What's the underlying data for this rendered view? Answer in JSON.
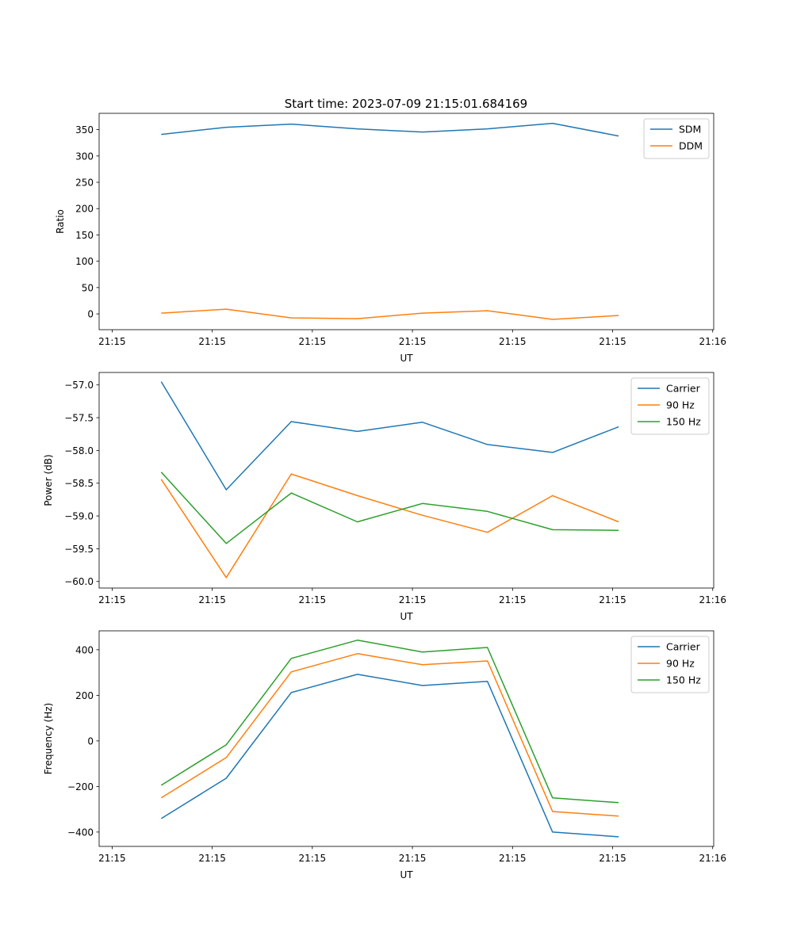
{
  "title": "Start time: 2023-07-09 21:15:01.684169",
  "colors": {
    "blue": "#1f77b4",
    "orange": "#ff7f0e",
    "green": "#2ca02c"
  },
  "chart_data": [
    {
      "type": "line",
      "xlabel": "UT",
      "ylabel": "Ratio",
      "x_seconds_after_2115": [
        4.9,
        11.4,
        17.9,
        24.5,
        31.0,
        37.5,
        44.0,
        50.6
      ],
      "xlim": [
        -1.3,
        60.1
      ],
      "xticks": [
        0,
        10,
        20,
        30,
        40,
        50,
        60
      ],
      "xtick_labels": [
        "21:15",
        "21:15",
        "21:15",
        "21:15",
        "21:15",
        "21:15",
        "21:16"
      ],
      "ylim": [
        -30,
        381
      ],
      "yticks": [
        0,
        50,
        100,
        150,
        200,
        250,
        300,
        350
      ],
      "ytick_labels": [
        "0",
        "50",
        "100",
        "150",
        "200",
        "250",
        "300",
        "350"
      ],
      "legend": "top-right",
      "series": [
        {
          "name": "SDM",
          "color": "#1f77b4",
          "values": [
            341,
            354.5,
            360.6,
            351.5,
            345.5,
            351.5,
            362,
            338
          ]
        },
        {
          "name": "DDM",
          "color": "#ff7f0e",
          "values": [
            1.5,
            9,
            -7.5,
            -9,
            1.5,
            6,
            -10.5,
            -3
          ]
        }
      ]
    },
    {
      "type": "line",
      "xlabel": "UT",
      "ylabel": "Power (dB)",
      "x_seconds_after_2115": [
        4.9,
        11.4,
        17.9,
        24.5,
        31.0,
        37.5,
        44.0,
        50.6
      ],
      "xlim": [
        -1.3,
        60.1
      ],
      "xticks": [
        0,
        10,
        20,
        30,
        40,
        50,
        60
      ],
      "xtick_labels": [
        "21:15",
        "21:15",
        "21:15",
        "21:15",
        "21:15",
        "21:15",
        "21:16"
      ],
      "ylim": [
        -60.1,
        -56.81
      ],
      "yticks": [
        -60.0,
        -59.5,
        -59.0,
        -58.5,
        -58.0,
        -57.5,
        -57.0
      ],
      "ytick_labels": [
        "−60.0",
        "−59.5",
        "−59.0",
        "−58.5",
        "−58.0",
        "−57.5",
        "−57.0"
      ],
      "legend": "top-right",
      "series": [
        {
          "name": "Carrier",
          "color": "#1f77b4",
          "values": [
            -56.95,
            -58.6,
            -57.56,
            -57.71,
            -57.57,
            -57.91,
            -58.03,
            -57.64
          ]
        },
        {
          "name": "90 Hz",
          "color": "#ff7f0e",
          "values": [
            -58.44,
            -59.94,
            -58.36,
            -58.69,
            -58.99,
            -59.25,
            -58.69,
            -59.09
          ]
        },
        {
          "name": "150 Hz",
          "color": "#2ca02c",
          "values": [
            -58.33,
            -59.42,
            -58.65,
            -59.09,
            -58.81,
            -58.93,
            -59.21,
            -59.22
          ]
        }
      ]
    },
    {
      "type": "line",
      "xlabel": "UT",
      "ylabel": "Frequency (Hz)",
      "x_seconds_after_2115": [
        4.9,
        11.4,
        17.9,
        24.5,
        31.0,
        37.5,
        44.0,
        50.6
      ],
      "xlim": [
        -1.3,
        60.1
      ],
      "xticks": [
        0,
        10,
        20,
        30,
        40,
        50,
        60
      ],
      "xtick_labels": [
        "21:15",
        "21:15",
        "21:15",
        "21:15",
        "21:15",
        "21:15",
        "21:16"
      ],
      "ylim": [
        -463,
        483
      ],
      "yticks": [
        -400,
        -200,
        0,
        200,
        400
      ],
      "ytick_labels": [
        "−400",
        "−200",
        "0",
        "200",
        "400"
      ],
      "legend": "top-right",
      "series": [
        {
          "name": "Carrier",
          "color": "#1f77b4",
          "values": [
            -341,
            -164,
            212,
            292,
            243,
            261,
            -400,
            -421
          ]
        },
        {
          "name": "90 Hz",
          "color": "#ff7f0e",
          "values": [
            -250,
            -73,
            303,
            383,
            334,
            351,
            -310,
            -330
          ]
        },
        {
          "name": "150 Hz",
          "color": "#2ca02c",
          "values": [
            -195,
            -17,
            362,
            442,
            390,
            410,
            -250,
            -271
          ]
        }
      ]
    }
  ]
}
